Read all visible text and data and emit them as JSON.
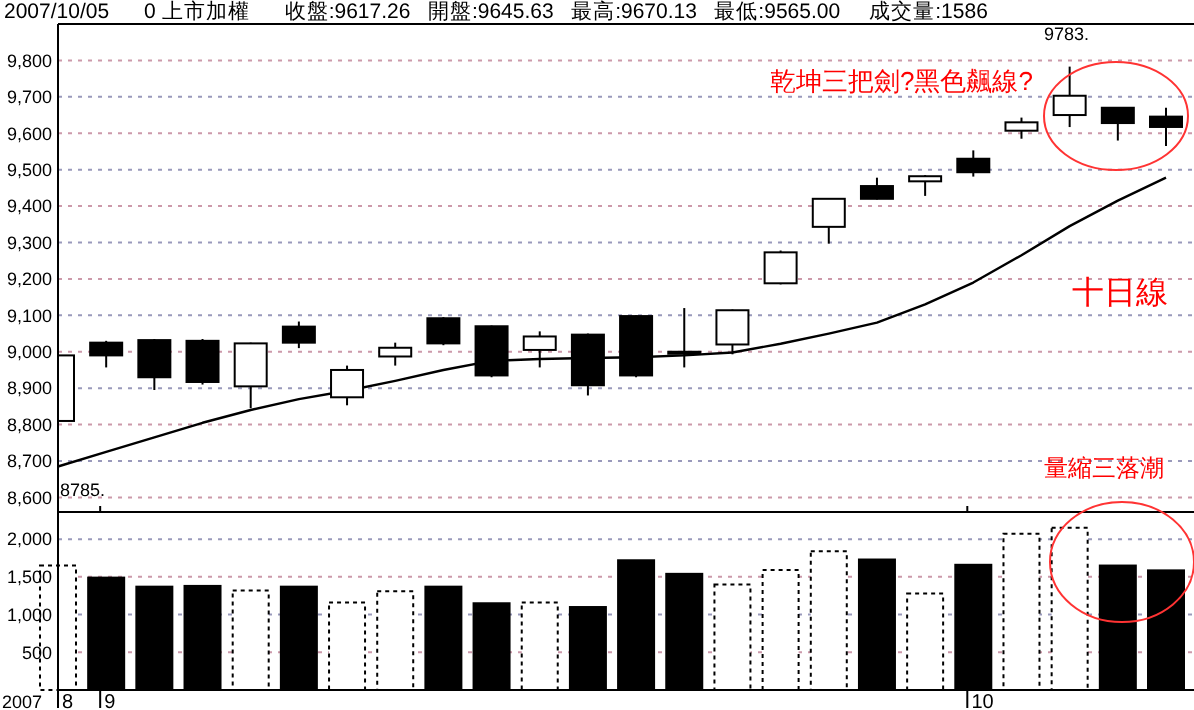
{
  "chart_data": [
    {
      "type": "candlestick",
      "title": "2007/10/05      0 上市加權      收盤:9617.26   開盤:9645.63   最高:9670.13   最低:9565.00     成交量:1586",
      "categories": [
        "8",
        "9",
        null,
        null,
        null,
        null,
        null,
        null,
        null,
        null,
        null,
        null,
        null,
        null,
        null,
        null,
        null,
        null,
        null,
        "10",
        null,
        null,
        null,
        null
      ],
      "ohlc": [
        [
          8810,
          8995,
          8785,
          8990
        ],
        [
          9025,
          9030,
          8957,
          8990
        ],
        [
          9032,
          9035,
          8895,
          8930
        ],
        [
          9030,
          9035,
          8910,
          8917
        ],
        [
          8905,
          9025,
          8845,
          9023
        ],
        [
          9069,
          9083,
          9010,
          9025
        ],
        [
          8875,
          8962,
          8853,
          8950
        ],
        [
          8987,
          9025,
          8962,
          9011
        ],
        [
          9092,
          9095,
          9018,
          9023
        ],
        [
          9070,
          9072,
          8930,
          8935
        ],
        [
          9005,
          9056,
          8957,
          9042
        ],
        [
          9047,
          9050,
          8880,
          8908
        ],
        [
          9098,
          9100,
          8930,
          8935
        ],
        [
          9000,
          9120,
          8957,
          8995
        ],
        [
          9020,
          9116,
          8993,
          9114
        ],
        [
          9188,
          9278,
          9185,
          9273
        ],
        [
          9343,
          9422,
          9297,
          9420
        ],
        [
          9455,
          9478,
          9418,
          9420
        ],
        [
          9468,
          9485,
          9428,
          9482
        ],
        [
          9530,
          9553,
          9481,
          9493
        ],
        [
          9607,
          9643,
          9585,
          9630
        ],
        [
          9650,
          9783,
          9617,
          9703
        ],
        [
          9670,
          9672,
          9580,
          9628
        ],
        [
          9645.63,
          9670.13,
          9565,
          9617.26
        ]
      ],
      "series": [
        {
          "type": "line",
          "name": "十日線",
          "color": "#000000",
          "values": [
            8685,
            8725,
            8765,
            8805,
            8840,
            8870,
            8893,
            8920,
            8950,
            8975,
            8980,
            8983,
            8985,
            8990,
            8998,
            9022,
            9050,
            9080,
            9130,
            9190,
            9265,
            9345,
            9415,
            9478
          ]
        }
      ],
      "ylim": [
        8560,
        9900
      ],
      "yticks": [
        {
          "value": 8600,
          "label": "8,600"
        },
        {
          "value": 8700,
          "label": "8,700"
        },
        {
          "value": 8800,
          "label": "8,800"
        },
        {
          "value": 8900,
          "label": "8,900"
        },
        {
          "value": 9000,
          "label": "9,000"
        },
        {
          "value": 9100,
          "label": "9,100"
        },
        {
          "value": 9200,
          "label": "9,200"
        },
        {
          "value": 9300,
          "label": "9,300"
        },
        {
          "value": 9400,
          "label": "9,400"
        },
        {
          "value": 9500,
          "label": "9,500"
        },
        {
          "value": 9600,
          "label": "9,600"
        },
        {
          "value": 9700,
          "label": "9,700"
        },
        {
          "value": 9800,
          "label": "9,800"
        }
      ],
      "grid": "y",
      "tick_labels": "y",
      "annotations": [
        "乾坤三把劍?黑色飆線?",
        "9783.",
        "8785."
      ]
    },
    {
      "type": "bar",
      "categories": [
        "8",
        "9",
        null,
        null,
        null,
        null,
        null,
        null,
        null,
        null,
        null,
        null,
        null,
        null,
        null,
        null,
        null,
        null,
        null,
        "10",
        null,
        null,
        null,
        null
      ],
      "values": [
        1650,
        1490,
        1370,
        1380,
        1320,
        1370,
        1160,
        1310,
        1370,
        1150,
        1160,
        1100,
        1720,
        1540,
        1400,
        1590,
        1840,
        1730,
        1280,
        1660,
        2070,
        2150,
        1650,
        1586
      ],
      "colors": [
        "#ffffff",
        "#000000",
        "#000000",
        "#000000",
        "#ffffff",
        "#000000",
        "#ffffff",
        "#ffffff",
        "#000000",
        "#000000",
        "#ffffff",
        "#000000",
        "#000000",
        "#000000",
        "#ffffff",
        "#ffffff",
        "#ffffff",
        "#000000",
        "#ffffff",
        "#000000",
        "#ffffff",
        "#ffffff",
        "#000000",
        "#000000"
      ],
      "ylim": [
        0,
        2360
      ],
      "yticks": [
        {
          "value": 500,
          "label": "500"
        },
        {
          "value": 1000,
          "label": "1,000"
        },
        {
          "value": 1500,
          "label": "1,500"
        },
        {
          "value": 2000,
          "label": "2,000"
        }
      ],
      "grid": "y",
      "xlabel": "2007",
      "annotations": [
        "量縮三落潮"
      ]
    }
  ]
}
